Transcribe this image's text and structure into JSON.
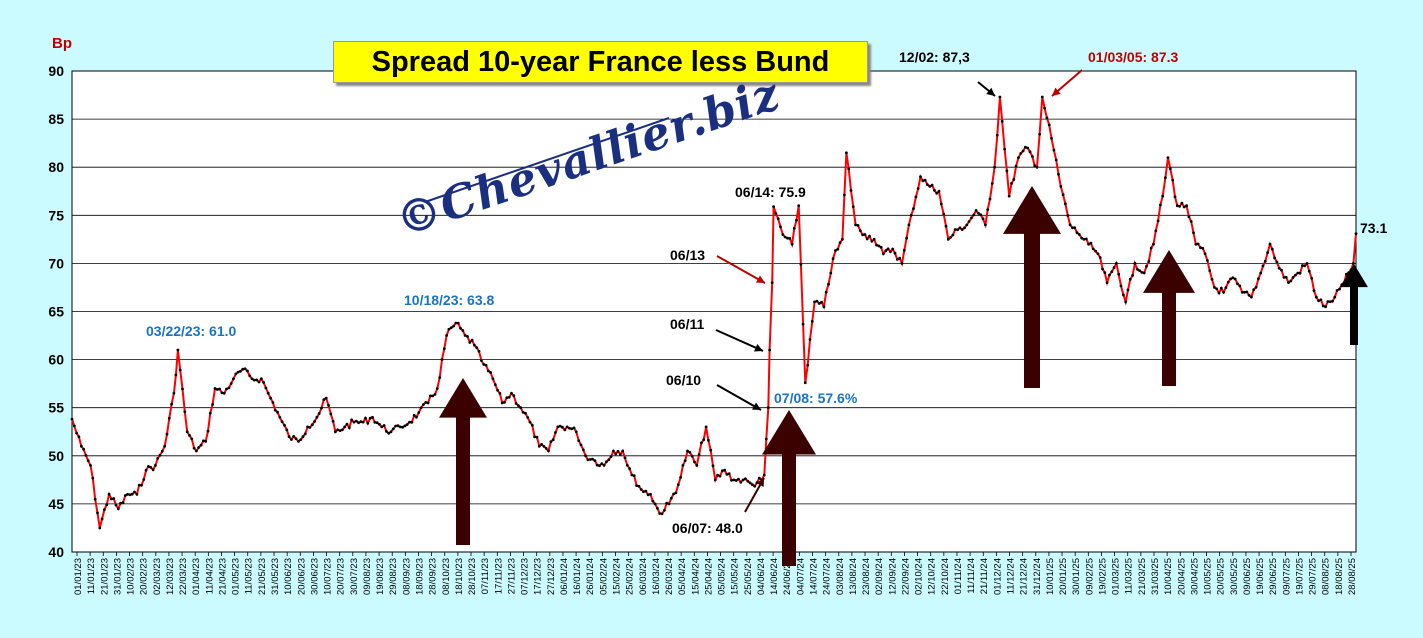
{
  "title": "Spread 10-year France less Bund",
  "ylabel": "Bp",
  "watermark": "©Chevallier.biz",
  "colors": {
    "background": "#ccfbff",
    "plot": "#ffffff",
    "line": "#ff0000",
    "marker": "#000000",
    "arrow_dark": "#3b0000",
    "arrow_black": "#000000",
    "label_blue": "#1a74c4",
    "label_red": "#c00000",
    "label_black": "#000000"
  },
  "chart_data": {
    "type": "line",
    "title": "Spread 10-year France less Bund",
    "ylabel": "Bp",
    "ylim": [
      40,
      90
    ],
    "yticks": [
      40,
      45,
      50,
      55,
      60,
      65,
      70,
      75,
      80,
      85,
      90
    ],
    "grid": true,
    "x_tick_labels": [
      "01/01/23",
      "11/01/23",
      "21/01/23",
      "31/01/23",
      "10/02/23",
      "20/02/23",
      "02/03/23",
      "12/03/23",
      "22/03/23",
      "01/04/23",
      "11/04/23",
      "21/04/23",
      "01/05/23",
      "11/05/23",
      "21/05/23",
      "31/05/23",
      "10/06/23",
      "20/06/23",
      "30/06/23",
      "10/07/23",
      "20/07/23",
      "30/07/23",
      "09/08/23",
      "19/08/23",
      "29/08/23",
      "08/09/23",
      "18/09/23",
      "28/09/23",
      "08/10/23",
      "18/10/23",
      "28/10/23",
      "07/11/23",
      "17/11/23",
      "27/11/23",
      "07/12/23",
      "17/12/23",
      "27/12/23",
      "06/01/24",
      "16/01/24",
      "26/01/24",
      "05/02/24",
      "15/02/24",
      "25/02/24",
      "06/03/24",
      "16/03/24",
      "26/03/24",
      "05/04/24",
      "15/04/24",
      "25/04/24",
      "05/05/24",
      "15/05/24",
      "25/05/24",
      "04/06/24",
      "14/06/24",
      "24/06/24",
      "04/07/24",
      "14/07/24",
      "24/07/24",
      "03/08/24",
      "13/08/24",
      "23/08/24",
      "02/09/24",
      "12/09/24",
      "22/09/24",
      "02/10/24",
      "12/10/24",
      "22/10/24",
      "01/11/24",
      "11/11/24",
      "21/11/24",
      "01/12/24",
      "11/12/24",
      "21/12/24",
      "31/12/24",
      "10/01/25",
      "20/01/25",
      "30/01/25",
      "09/02/25",
      "19/02/25",
      "01/03/25",
      "11/03/25",
      "21/03/25",
      "31/03/25",
      "10/04/25",
      "20/04/25",
      "30/04/25",
      "10/05/25",
      "20/05/25",
      "30/05/25",
      "09/06/25",
      "19/06/25",
      "29/06/25",
      "09/07/25",
      "19/07/25",
      "29/07/25",
      "08/08/25",
      "18/08/25",
      "28/08/25"
    ],
    "series": [
      {
        "points": [
          [
            "2023-01-01",
            53.8
          ],
          [
            "2023-01-08",
            51
          ],
          [
            "2023-01-15",
            49
          ],
          [
            "2023-01-22",
            42.5
          ],
          [
            "2023-01-29",
            46
          ],
          [
            "2023-02-05",
            44.5
          ],
          [
            "2023-02-12",
            46
          ],
          [
            "2023-02-19",
            46
          ],
          [
            "2023-02-26",
            48.5
          ],
          [
            "2023-03-05",
            49
          ],
          [
            "2023-03-12",
            51
          ],
          [
            "2023-03-19",
            56.5
          ],
          [
            "2023-03-22",
            61
          ],
          [
            "2023-03-29",
            52.5
          ],
          [
            "2023-04-05",
            50.5
          ],
          [
            "2023-04-12",
            51.5
          ],
          [
            "2023-04-19",
            57
          ],
          [
            "2023-04-26",
            56.5
          ],
          [
            "2023-05-03",
            58
          ],
          [
            "2023-05-10",
            59
          ],
          [
            "2023-05-17",
            58
          ],
          [
            "2023-05-24",
            58
          ],
          [
            "2023-05-31",
            56
          ],
          [
            "2023-06-07",
            54
          ],
          [
            "2023-06-14",
            52
          ],
          [
            "2023-06-21",
            51.5
          ],
          [
            "2023-06-28",
            53
          ],
          [
            "2023-07-05",
            54
          ],
          [
            "2023-07-12",
            56
          ],
          [
            "2023-07-19",
            52.5
          ],
          [
            "2023-07-26",
            53
          ],
          [
            "2023-08-02",
            53.5
          ],
          [
            "2023-08-09",
            53.5
          ],
          [
            "2023-08-16",
            54
          ],
          [
            "2023-08-23",
            53
          ],
          [
            "2023-08-30",
            52.5
          ],
          [
            "2023-09-06",
            53
          ],
          [
            "2023-09-13",
            53.5
          ],
          [
            "2023-09-20",
            54.5
          ],
          [
            "2023-09-27",
            55.5
          ],
          [
            "2023-10-04",
            57
          ],
          [
            "2023-10-11",
            62.5
          ],
          [
            "2023-10-18",
            63.8
          ],
          [
            "2023-10-25",
            62.5
          ],
          [
            "2023-11-01",
            61.5
          ],
          [
            "2023-11-08",
            59.5
          ],
          [
            "2023-11-15",
            58
          ],
          [
            "2023-11-22",
            55.5
          ],
          [
            "2023-11-29",
            56.5
          ],
          [
            "2023-12-06",
            55
          ],
          [
            "2023-12-13",
            53.5
          ],
          [
            "2023-12-20",
            51
          ],
          [
            "2023-12-27",
            50.5
          ],
          [
            "2024-01-03",
            53
          ],
          [
            "2024-01-10",
            53
          ],
          [
            "2024-01-17",
            52.5
          ],
          [
            "2024-01-24",
            50
          ],
          [
            "2024-01-31",
            49.5
          ],
          [
            "2024-02-07",
            49
          ],
          [
            "2024-02-14",
            50.5
          ],
          [
            "2024-02-21",
            50.5
          ],
          [
            "2024-02-28",
            48
          ],
          [
            "2024-03-06",
            46.5
          ],
          [
            "2024-03-13",
            46
          ],
          [
            "2024-03-20",
            44
          ],
          [
            "2024-03-27",
            45
          ],
          [
            "2024-04-03",
            47
          ],
          [
            "2024-04-10",
            50.5
          ],
          [
            "2024-04-17",
            49
          ],
          [
            "2024-04-24",
            53
          ],
          [
            "2024-05-01",
            47.5
          ],
          [
            "2024-05-08",
            48.5
          ],
          [
            "2024-05-15",
            47.5
          ],
          [
            "2024-05-22",
            47.5
          ],
          [
            "2024-05-29",
            47
          ],
          [
            "2024-06-05",
            47.5
          ],
          [
            "2024-06-07",
            48
          ],
          [
            "2024-06-10",
            55
          ],
          [
            "2024-06-11",
            61
          ],
          [
            "2024-06-13",
            68
          ],
          [
            "2024-06-14",
            75.9
          ],
          [
            "2024-06-21",
            73
          ],
          [
            "2024-06-28",
            72
          ],
          [
            "2024-07-03",
            76
          ],
          [
            "2024-07-08",
            57.6
          ],
          [
            "2024-07-15",
            66
          ],
          [
            "2024-07-22",
            65.5
          ],
          [
            "2024-07-29",
            70.5
          ],
          [
            "2024-08-05",
            72.5
          ],
          [
            "2024-08-08",
            81.5
          ],
          [
            "2024-08-15",
            74
          ],
          [
            "2024-08-22",
            73
          ],
          [
            "2024-08-29",
            72.5
          ],
          [
            "2024-09-05",
            71
          ],
          [
            "2024-09-12",
            71.5
          ],
          [
            "2024-09-19",
            70
          ],
          [
            "2024-09-26",
            75
          ],
          [
            "2024-10-03",
            79
          ],
          [
            "2024-10-10",
            78
          ],
          [
            "2024-10-17",
            77.5
          ],
          [
            "2024-10-24",
            72.5
          ],
          [
            "2024-10-31",
            73.5
          ],
          [
            "2024-11-07",
            74
          ],
          [
            "2024-11-14",
            75.5
          ],
          [
            "2024-11-21",
            74
          ],
          [
            "2024-11-28",
            80
          ],
          [
            "2024-12-02",
            87.3
          ],
          [
            "2024-12-09",
            77
          ],
          [
            "2024-12-16",
            81
          ],
          [
            "2024-12-23",
            82
          ],
          [
            "2024-12-30",
            80
          ],
          [
            "2025-01-03",
            87.3
          ],
          [
            "2025-01-10",
            83
          ],
          [
            "2025-01-17",
            78
          ],
          [
            "2025-01-24",
            74
          ],
          [
            "2025-01-31",
            73
          ],
          [
            "2025-02-07",
            72
          ],
          [
            "2025-02-14",
            71
          ],
          [
            "2025-02-21",
            68
          ],
          [
            "2025-02-28",
            70
          ],
          [
            "2025-03-07",
            66
          ],
          [
            "2025-03-14",
            70
          ],
          [
            "2025-03-21",
            69
          ],
          [
            "2025-03-28",
            72
          ],
          [
            "2025-04-04",
            77
          ],
          [
            "2025-04-08",
            81
          ],
          [
            "2025-04-15",
            76
          ],
          [
            "2025-04-22",
            76
          ],
          [
            "2025-04-29",
            72
          ],
          [
            "2025-05-06",
            71
          ],
          [
            "2025-05-13",
            67.5
          ],
          [
            "2025-05-20",
            67
          ],
          [
            "2025-05-27",
            68.5
          ],
          [
            "2025-06-03",
            67
          ],
          [
            "2025-06-10",
            66.5
          ],
          [
            "2025-06-17",
            69
          ],
          [
            "2025-06-24",
            72
          ],
          [
            "2025-07-01",
            69.5
          ],
          [
            "2025-07-08",
            68
          ],
          [
            "2025-07-15",
            69
          ],
          [
            "2025-07-22",
            70
          ],
          [
            "2025-07-29",
            66.5
          ],
          [
            "2025-08-05",
            65.5
          ],
          [
            "2025-08-12",
            66.5
          ],
          [
            "2025-08-19",
            68
          ],
          [
            "2025-08-26",
            70
          ],
          [
            "2025-08-28",
            73.1
          ]
        ]
      }
    ],
    "annotations": [
      {
        "text": "03/22/23: 61.0",
        "color": "blue"
      },
      {
        "text": "10/18/23: 63.8",
        "color": "blue"
      },
      {
        "text": "06/14: 75.9",
        "color": "black"
      },
      {
        "text": "06/13",
        "color": "black"
      },
      {
        "text": "06/11",
        "color": "black"
      },
      {
        "text": "06/10",
        "color": "black"
      },
      {
        "text": "07/08: 57.6%",
        "color": "blue"
      },
      {
        "text": "06/07: 48.0",
        "color": "black"
      },
      {
        "text": "12/02: 87,3",
        "color": "black"
      },
      {
        "text": "01/03/05: 87.3",
        "color": "red"
      },
      {
        "text": "73.1",
        "color": "black"
      }
    ],
    "up_arrows": [
      "2023-10-18",
      "2024-07-08",
      "2024-12-20",
      "2025-04-12",
      "2025-08-31"
    ]
  }
}
